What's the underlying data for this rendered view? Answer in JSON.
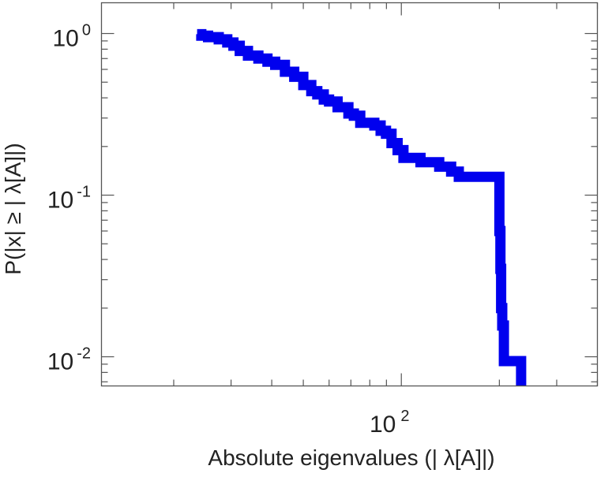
{
  "chart_data": {
    "type": "line",
    "title": "",
    "xlabel": "Absolute eigenvalues (|     λ[A]|)",
    "ylabel": "P(|x|  ≥ | λ[A]|)",
    "x_scale": "log",
    "y_scale": "log",
    "xlim": [
      12,
      400
    ],
    "ylim": [
      0.0066,
      1.55
    ],
    "x_ticks": [
      {
        "base": "10",
        "exp": "2",
        "value": 100
      }
    ],
    "y_ticks": [
      {
        "base": "10",
        "exp": "0",
        "value": 1
      },
      {
        "base": "10",
        "exp": "-1",
        "value": 0.1
      },
      {
        "base": "10",
        "exp": "-2",
        "value": 0.01
      }
    ],
    "grid": false,
    "legend": "none",
    "colors": {
      "series": "#0000ee",
      "frame": "#555555",
      "text": "#222222"
    },
    "series": [
      {
        "x": [
          23.6,
          24.3,
          25.5,
          27.5,
          29.2,
          30.5,
          31.9,
          33.8,
          36.4,
          38.8,
          41.0,
          43.9,
          46.9,
          50.0,
          52.9,
          55.2,
          57.8,
          60.0,
          63.7,
          66.8,
          68.8,
          71.5,
          74.8,
          78.0,
          82.6,
          86.4,
          89.7,
          93.3,
          97.4,
          101.5,
          108.3,
          114.5,
          122.9,
          130.7,
          142.2,
          150.1,
          161.9,
          175.0,
          187.4,
          199.4,
          200.0,
          201.5,
          202.5,
          204.1,
          206.5,
          233.2,
          233.2
        ],
        "y": [
          0.99,
          0.97,
          0.95,
          0.92,
          0.88,
          0.84,
          0.78,
          0.73,
          0.7,
          0.67,
          0.64,
          0.58,
          0.54,
          0.48,
          0.44,
          0.42,
          0.39,
          0.38,
          0.35,
          0.35,
          0.32,
          0.31,
          0.28,
          0.28,
          0.27,
          0.25,
          0.24,
          0.21,
          0.19,
          0.17,
          0.17,
          0.16,
          0.16,
          0.15,
          0.14,
          0.13,
          0.13,
          0.13,
          0.13,
          0.13,
          0.06,
          0.035,
          0.02,
          0.0156,
          0.0094,
          0.0094,
          0.0066
        ]
      }
    ]
  }
}
